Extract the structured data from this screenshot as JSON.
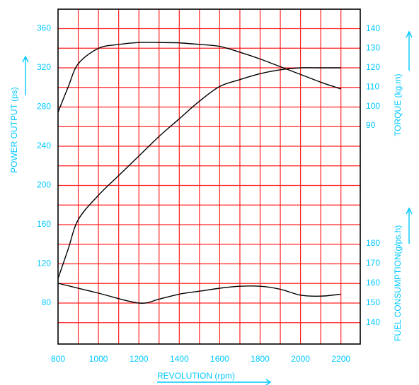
{
  "chart_data": {
    "type": "line",
    "x_axis": {
      "label": "REVOLUTION (rpm)",
      "range": [
        800,
        2250
      ],
      "ticks": [
        "800",
        "1000",
        "1200",
        "1400",
        "1600",
        "1800",
        "2000",
        "2200"
      ]
    },
    "y_axis_left": {
      "label": "POWER OUTPUT (ps)",
      "range": [
        50,
        380
      ],
      "ticks": [
        "80",
        "120",
        "160",
        "200",
        "240",
        "280",
        "320",
        "360"
      ]
    },
    "y_axis_right_torque": {
      "label": "TORQUE (kg.m)",
      "range": [
        85,
        145
      ],
      "ticks": [
        "90",
        "100",
        "110",
        "120",
        "130",
        "140"
      ]
    },
    "y_axis_right_fuel": {
      "label": "FUEL CONSUMPTION(g/ps.h)",
      "range": [
        135,
        190
      ],
      "ticks": [
        "140",
        "150",
        "160",
        "170",
        "180"
      ]
    },
    "grid": true,
    "series": [
      {
        "axis": "power",
        "x": [
          800,
          850,
          900,
          1000,
          1100,
          1200,
          1300,
          1400,
          1500,
          1600,
          1700,
          1800,
          1900,
          2000,
          2100,
          2200
        ],
        "y": [
          105,
          135,
          165,
          190,
          210,
          230,
          250,
          268,
          286,
          301,
          308,
          314,
          318,
          320,
          320,
          320
        ]
      },
      {
        "axis": "torque",
        "x": [
          800,
          850,
          900,
          1000,
          1100,
          1200,
          1300,
          1400,
          1500,
          1600,
          1700,
          1800,
          1900,
          2000,
          2100,
          2200
        ],
        "y": [
          97,
          110,
          122,
          130,
          132,
          133,
          133,
          132.8,
          132,
          131,
          128,
          124.5,
          120.5,
          116.5,
          112.5,
          109
        ]
      },
      {
        "axis": "fuel",
        "x": [
          800,
          1000,
          1200,
          1300,
          1400,
          1500,
          1600,
          1700,
          1800,
          1900,
          2000,
          2100,
          2200
        ],
        "y": [
          160,
          155,
          150,
          152,
          154.5,
          156,
          157.5,
          158.5,
          158.5,
          157,
          154,
          153.5,
          154.5
        ]
      }
    ]
  }
}
